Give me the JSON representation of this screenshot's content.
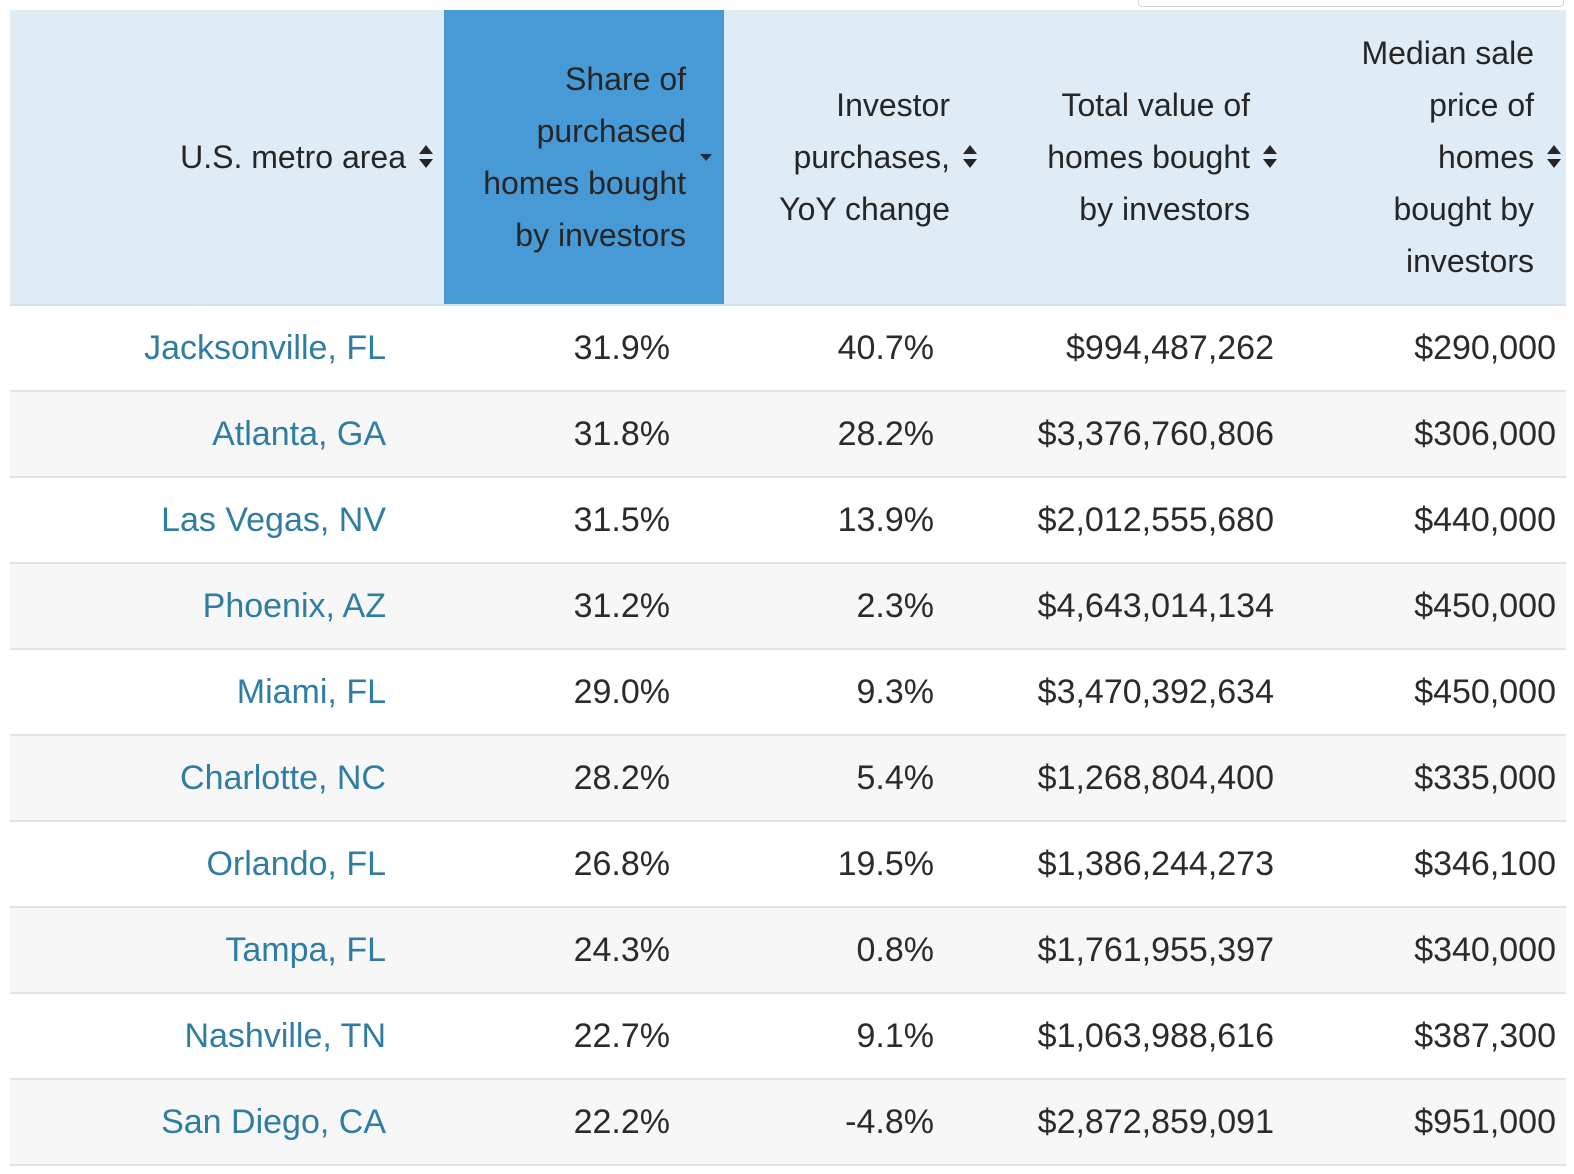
{
  "table": {
    "headers": [
      {
        "key": "metro",
        "lines": [
          "U.S. metro area"
        ],
        "sort": "none"
      },
      {
        "key": "share",
        "lines": [
          "Share of",
          "purchased",
          "homes bought",
          "by investors"
        ],
        "sort": "descending"
      },
      {
        "key": "yoy",
        "lines": [
          "Investor",
          "purchases,",
          "YoY change"
        ],
        "sort": "none"
      },
      {
        "key": "total",
        "lines": [
          "Total value of",
          "homes bought",
          "by investors"
        ],
        "sort": "none"
      },
      {
        "key": "median",
        "lines": [
          "Median sale",
          "price of",
          "homes",
          "bought by",
          "investors"
        ],
        "sort": "none"
      }
    ],
    "rows": [
      {
        "metro": "Jacksonville, FL",
        "share": "31.9%",
        "yoy": "40.7%",
        "total": "$994,487,262",
        "median": "$290,000"
      },
      {
        "metro": "Atlanta, GA",
        "share": "31.8%",
        "yoy": "28.2%",
        "total": "$3,376,760,806",
        "median": "$306,000"
      },
      {
        "metro": "Las Vegas, NV",
        "share": "31.5%",
        "yoy": "13.9%",
        "total": "$2,012,555,680",
        "median": "$440,000"
      },
      {
        "metro": "Phoenix, AZ",
        "share": "31.2%",
        "yoy": "2.3%",
        "total": "$4,643,014,134",
        "median": "$450,000"
      },
      {
        "metro": "Miami, FL",
        "share": "29.0%",
        "yoy": "9.3%",
        "total": "$3,470,392,634",
        "median": "$450,000"
      },
      {
        "metro": "Charlotte, NC",
        "share": "28.2%",
        "yoy": "5.4%",
        "total": "$1,268,804,400",
        "median": "$335,000"
      },
      {
        "metro": "Orlando, FL",
        "share": "26.8%",
        "yoy": "19.5%",
        "total": "$1,386,244,273",
        "median": "$346,100"
      },
      {
        "metro": "Tampa, FL",
        "share": "24.3%",
        "yoy": "0.8%",
        "total": "$1,761,955,397",
        "median": "$340,000"
      },
      {
        "metro": "Nashville, TN",
        "share": "22.7%",
        "yoy": "9.1%",
        "total": "$1,063,988,616",
        "median": "$387,300"
      },
      {
        "metro": "San Diego, CA",
        "share": "22.2%",
        "yoy": "-4.8%",
        "total": "$2,872,859,091",
        "median": "$951,000"
      }
    ]
  },
  "colors": {
    "header_bg": "#dfecf6",
    "sorted_header_bg": "#479ad6",
    "link": "#2f7da3",
    "row_alt_bg": "#f7f7f7"
  },
  "icons": {
    "unsorted": "sort-both-icon",
    "sorted": "sort-down-icon"
  }
}
